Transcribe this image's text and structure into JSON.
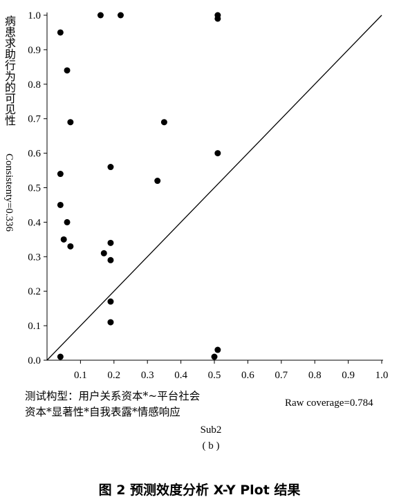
{
  "chart_data": {
    "type": "scatter",
    "title": "",
    "xlabel": "Sub2",
    "ylabel": "病患求助行为的可见性",
    "ylabel_secondary": "Consistenty=0.336",
    "xlim": [
      0,
      1.0
    ],
    "ylim": [
      0,
      1.0
    ],
    "x_ticks": [
      "0.1",
      "0.2",
      "0.3",
      "0.4",
      "0.5",
      "0.6",
      "0.7",
      "0.8",
      "0.9",
      "1.0"
    ],
    "y_ticks": [
      "0.0",
      "0.1",
      "0.2",
      "0.3",
      "0.4",
      "0.5",
      "0.6",
      "0.7",
      "0.8",
      "0.9",
      "1.0"
    ],
    "diagonal": true,
    "points": [
      {
        "x": 0.16,
        "y": 1.0
      },
      {
        "x": 0.22,
        "y": 1.0
      },
      {
        "x": 0.51,
        "y": 1.0
      },
      {
        "x": 0.51,
        "y": 0.99
      },
      {
        "x": 0.04,
        "y": 0.95
      },
      {
        "x": 0.06,
        "y": 0.84
      },
      {
        "x": 0.07,
        "y": 0.69
      },
      {
        "x": 0.35,
        "y": 0.69
      },
      {
        "x": 0.51,
        "y": 0.6
      },
      {
        "x": 0.19,
        "y": 0.56
      },
      {
        "x": 0.04,
        "y": 0.54
      },
      {
        "x": 0.33,
        "y": 0.52
      },
      {
        "x": 0.04,
        "y": 0.45
      },
      {
        "x": 0.06,
        "y": 0.4
      },
      {
        "x": 0.05,
        "y": 0.35
      },
      {
        "x": 0.07,
        "y": 0.33
      },
      {
        "x": 0.19,
        "y": 0.34
      },
      {
        "x": 0.17,
        "y": 0.31
      },
      {
        "x": 0.19,
        "y": 0.29
      },
      {
        "x": 0.19,
        "y": 0.17
      },
      {
        "x": 0.19,
        "y": 0.11
      },
      {
        "x": 0.04,
        "y": 0.01
      },
      {
        "x": 0.5,
        "y": 0.01
      },
      {
        "x": 0.51,
        "y": 0.03
      }
    ]
  },
  "annotations": {
    "model_line1": "测试构型：用户关系资本*~平台社会",
    "model_line2": "资本*显著性*自我表露*情感响应",
    "raw_coverage": "Raw coverage=0.784",
    "sublabel": "( b )"
  },
  "caption": "图 2   预测效度分析 X-Y Plot 结果"
}
